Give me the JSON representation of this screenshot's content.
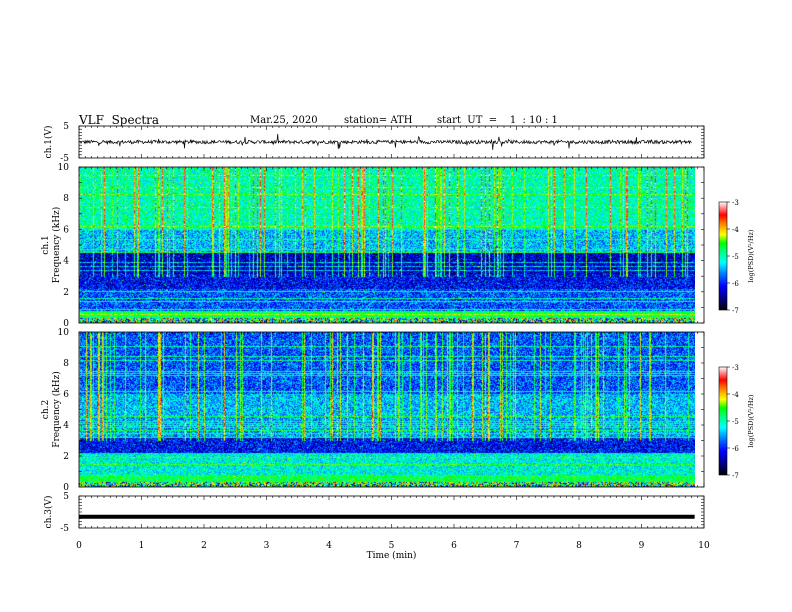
{
  "header": {
    "title": "VLF  Spectra",
    "date": "Mar.25, 2020",
    "station": "station= ATH",
    "start": "start  UT  =    1  : 10 : 1"
  },
  "chart_data": [
    {
      "type": "line",
      "panel": "ch1-waveform",
      "ylabel": "ch.1(V)",
      "ylim": [
        -5,
        5
      ],
      "yticks": [
        "5",
        "-5"
      ],
      "xlim": [
        0,
        10
      ],
      "data_extent_min": 9.8,
      "baseline": 0,
      "note_series": "noisy waveform near 0 V with occasional spikes"
    },
    {
      "type": "heatmap",
      "panel": "ch1-spectrogram",
      "ylabel_top": "ch.1",
      "ylabel": "Frequency  (kHz)",
      "ylim": [
        0,
        10
      ],
      "yticks": [
        "0",
        "2",
        "4",
        "6",
        "8",
        "10"
      ],
      "xlim": [
        0,
        10
      ],
      "colorbar": {
        "label": "log(PSD)(V²/Hz)",
        "range": [
          -7,
          -3
        ],
        "ticks": [
          "-3",
          "-4",
          "-5",
          "-6",
          "-7"
        ]
      }
    },
    {
      "type": "heatmap",
      "panel": "ch2-spectrogram",
      "ylabel_top": "ch.2",
      "ylabel": "Frequency  (kHz)",
      "ylim": [
        0,
        10
      ],
      "yticks": [
        "0",
        "2",
        "4",
        "6",
        "8",
        "10"
      ],
      "xlim": [
        0,
        10
      ],
      "colorbar": {
        "label": "log(PSD)(V²/Hz)",
        "range": [
          -7,
          -3
        ],
        "ticks": [
          "-3",
          "-4",
          "-5",
          "-6",
          "-7"
        ]
      }
    },
    {
      "type": "line",
      "panel": "ch3-waveform",
      "ylabel": "ch.3(V)",
      "ylim": [
        -5,
        5
      ],
      "yticks": [
        "5",
        "-5"
      ],
      "xlim": [
        0,
        10
      ],
      "constant_value": -1.5
    }
  ],
  "x_axis": {
    "label": "Time  (min)",
    "ticks": [
      "0",
      "1",
      "2",
      "3",
      "4",
      "5",
      "6",
      "7",
      "8",
      "9",
      "10"
    ]
  },
  "palette": {
    "colormap": [
      "#000000",
      "#000080",
      "#0000ff",
      "#0080ff",
      "#00ffff",
      "#00ff80",
      "#00ff00",
      "#80ff00",
      "#ffff00",
      "#ff8000",
      "#ff0000",
      "#ffffff"
    ]
  }
}
